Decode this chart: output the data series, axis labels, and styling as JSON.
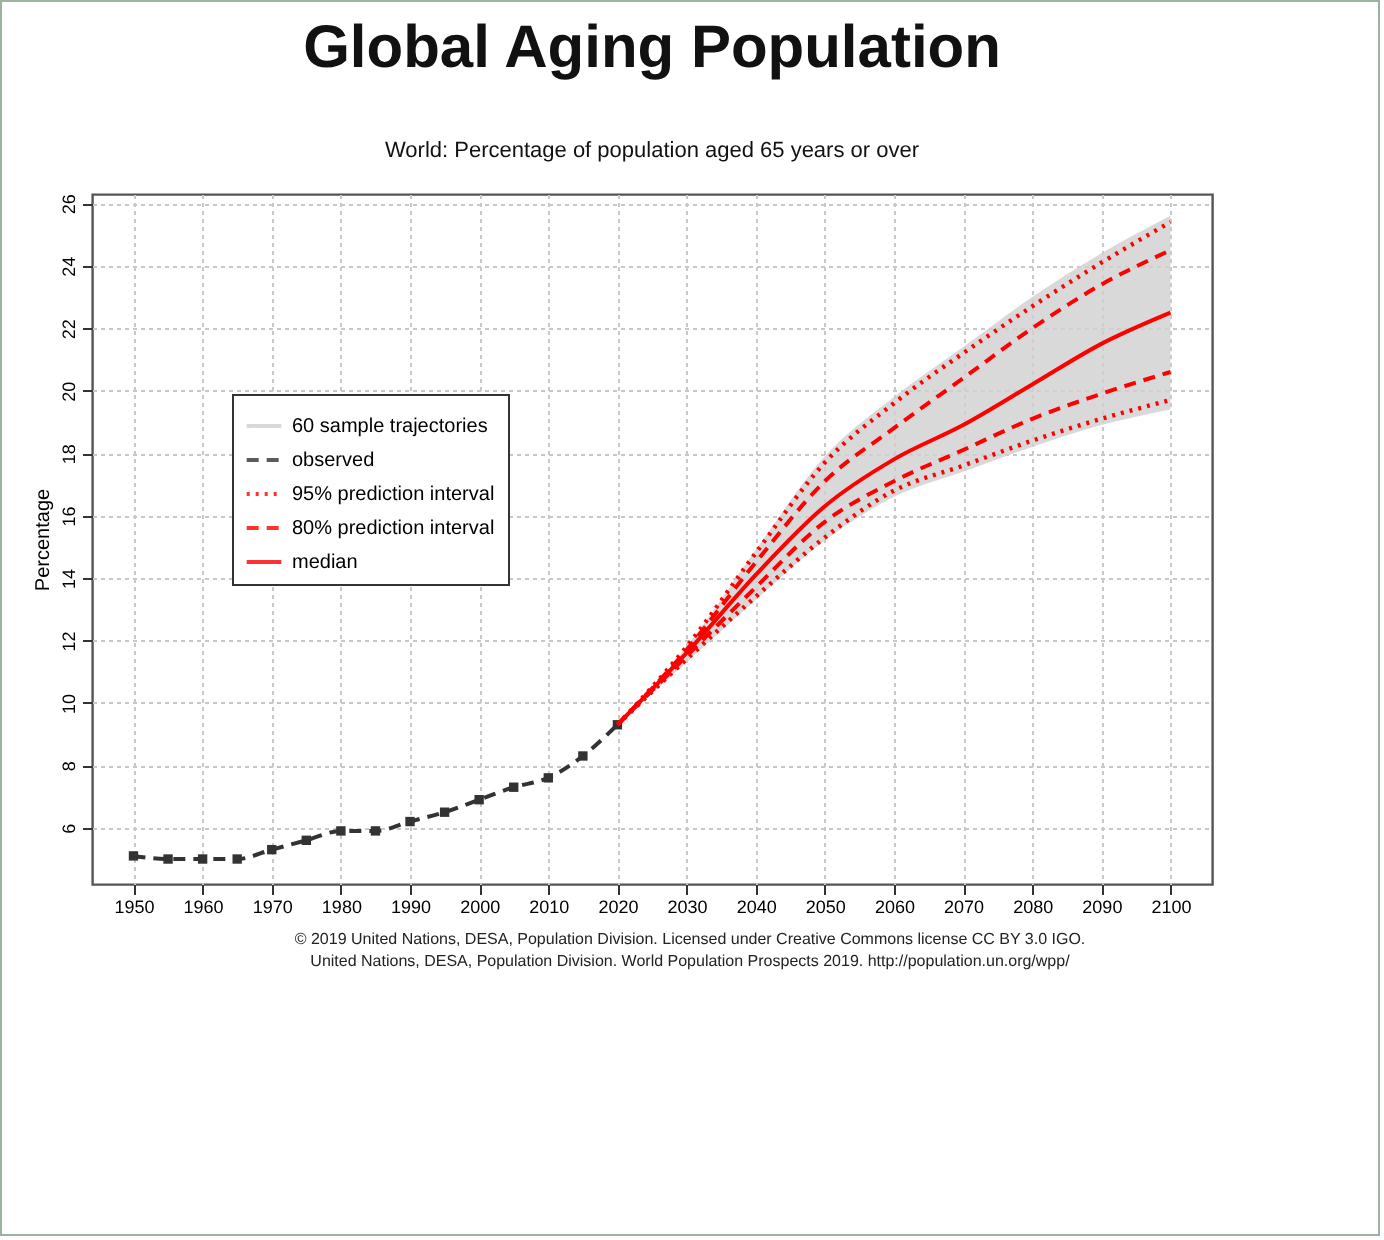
{
  "chart_data": {
    "type": "line",
    "title": "Global Aging Population",
    "subtitle": "World: Percentage of population aged 65 years or over",
    "ylabel": "Percentage",
    "xlim": [
      1944,
      2106
    ],
    "xticks": [
      1950,
      1960,
      1970,
      1980,
      1990,
      2000,
      2010,
      2020,
      2030,
      2040,
      2050,
      2060,
      2070,
      2080,
      2090,
      2100
    ],
    "ylim": [
      4.2,
      26.3
    ],
    "yticks": [
      6,
      8,
      10,
      12,
      14,
      16,
      18,
      20,
      22,
      24,
      26
    ],
    "grid": true,
    "legend": "left",
    "annotations": [
      "© 2019 United Nations, DESA, Population Division. Licensed under Creative Commons license CC BY 3.0 IGO.",
      "United Nations, DESA, Population Division. World Population Prospects 2019. http://population.un.org/wpp/"
    ],
    "series": [
      {
        "name": "60 sample trajectories",
        "type": "area",
        "color": "#cfcfcf",
        "x": [
          2020,
          2030,
          2040,
          2050,
          2060,
          2070,
          2080,
          2090,
          2100
        ],
        "values": [
          null,
          null,
          null,
          null,
          null,
          null,
          null,
          null,
          null
        ],
        "lower": [
          9.3,
          11.3,
          13.3,
          15.2,
          16.6,
          17.4,
          18.2,
          18.9,
          19.4
        ],
        "upper": [
          9.3,
          11.8,
          14.9,
          17.9,
          19.8,
          21.4,
          23.0,
          24.4,
          25.6
        ]
      },
      {
        "name": "observed",
        "color": "#333333",
        "line_style": "dashed",
        "marker": "square",
        "x": [
          1950,
          1955,
          1960,
          1965,
          1970,
          1975,
          1980,
          1985,
          1990,
          1995,
          2000,
          2005,
          2010,
          2015,
          2020
        ],
        "values": [
          5.1,
          5.0,
          5.0,
          5.0,
          5.3,
          5.6,
          5.9,
          5.9,
          6.2,
          6.5,
          6.9,
          7.3,
          7.6,
          8.3,
          9.3
        ]
      },
      {
        "name": "95% prediction interval",
        "color": "#ff0000",
        "line_style": "dotted",
        "x": [
          2020,
          2030,
          2040,
          2050,
          2060,
          2070,
          2080,
          2090,
          2100
        ],
        "values": [
          9.3,
          11.8,
          14.8,
          17.7,
          19.6,
          21.2,
          22.7,
          24.1,
          25.4
        ]
      },
      {
        "color": "#ff0000",
        "line_style": "dotted",
        "x": [
          2020,
          2030,
          2040,
          2050,
          2060,
          2070,
          2080,
          2090,
          2100
        ],
        "values": [
          9.3,
          11.4,
          13.4,
          15.3,
          16.8,
          17.6,
          18.4,
          19.1,
          19.7
        ]
      },
      {
        "name": "80% prediction interval",
        "color": "#ff0000",
        "line_style": "dashed",
        "x": [
          2020,
          2030,
          2040,
          2050,
          2060,
          2070,
          2080,
          2090,
          2100
        ],
        "values": [
          9.3,
          11.7,
          14.5,
          17.1,
          18.8,
          20.4,
          22.0,
          23.4,
          24.5
        ]
      },
      {
        "color": "#ff0000",
        "line_style": "dashed",
        "x": [
          2020,
          2030,
          2040,
          2050,
          2060,
          2070,
          2080,
          2090,
          2100
        ],
        "values": [
          9.3,
          11.5,
          13.7,
          15.8,
          17.1,
          18.1,
          19.1,
          19.9,
          20.6
        ]
      },
      {
        "name": "median",
        "color": "#ff0000",
        "line_style": "solid",
        "x": [
          2020,
          2030,
          2040,
          2050,
          2060,
          2070,
          2080,
          2090,
          2100
        ],
        "values": [
          9.3,
          11.6,
          14.1,
          16.3,
          17.8,
          18.9,
          20.2,
          21.5,
          22.5
        ]
      }
    ]
  }
}
